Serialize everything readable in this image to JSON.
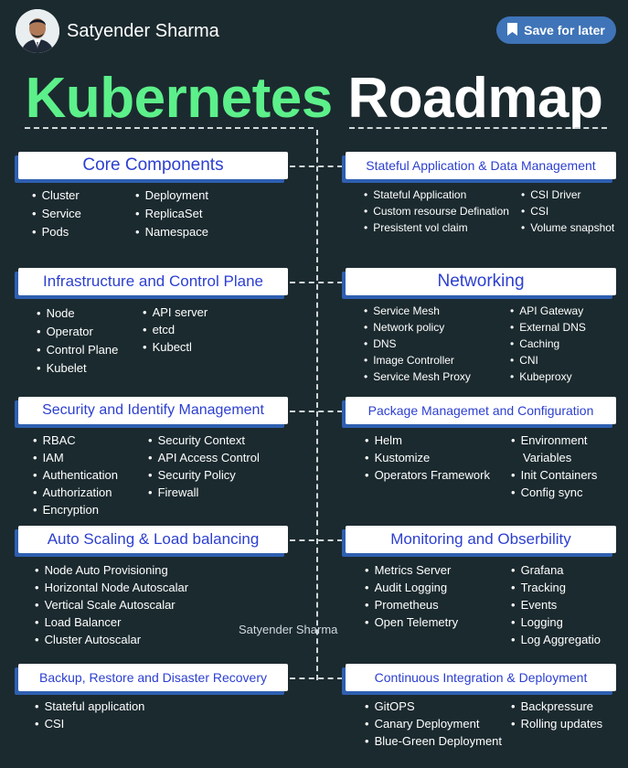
{
  "header": {
    "author": "Satyender Sharma",
    "save_label": "Save for later",
    "save_icon": "bookmark-icon"
  },
  "title": {
    "part1": "Kubernetes",
    "part2": "Roadmap"
  },
  "watermark": "Satyender Sharma",
  "colors": {
    "background": "#1b2a2f",
    "title_green": "#5cf08a",
    "header_text": "#2c3fd0",
    "button": "#3f74b8",
    "header_shadow": "#2e5fb0"
  },
  "sections": {
    "core": {
      "title": "Core Components",
      "col1": [
        "Cluster",
        "Service",
        "Pods"
      ],
      "col2": [
        "Deployment",
        "ReplicaSet",
        "Namespace"
      ]
    },
    "stateful": {
      "title": "Stateful Application & Data Management",
      "col1": [
        "Stateful Application",
        "Custom resourse Defination",
        "Presistent vol claim"
      ],
      "col2": [
        "CSI Driver",
        "CSI",
        "Volume snapshot"
      ]
    },
    "infra": {
      "title": "Infrastructure and Control Plane",
      "col1": [
        "Node",
        "Operator",
        "Control Plane",
        "Kubelet"
      ],
      "col2": [
        "API server",
        "etcd",
        "Kubectl"
      ]
    },
    "networking": {
      "title": "Networking",
      "col1": [
        "Service Mesh",
        "Network policy",
        "DNS",
        "Image Controller",
        "Service Mesh Proxy"
      ],
      "col2": [
        "API Gateway",
        "External DNS",
        "Caching",
        "CNI",
        "Kubeproxy"
      ]
    },
    "security": {
      "title": "Security and Identify Management",
      "col1": [
        "RBAC",
        "IAM",
        "Authentication",
        "Authorization",
        "Encryption"
      ],
      "col2": [
        "Security Context",
        "API Access Control",
        "Security Policy",
        "Firewall"
      ]
    },
    "package": {
      "title": "Package Managemet and Configuration",
      "col1": [
        "Helm",
        "Kustomize",
        "Operators Framework"
      ],
      "col2": [
        "Environment",
        "Variables",
        "Init Containers",
        "Config sync"
      ]
    },
    "autoscaling": {
      "title": "Auto Scaling & Load balancing",
      "col1": [
        "Node Auto Provisioning",
        "Horizontal Node Autoscalar",
        "Vertical Scale Autoscalar",
        "Load Balancer",
        "Cluster Autoscalar"
      ]
    },
    "monitoring": {
      "title": "Monitoring and Obserbility",
      "col1": [
        "Metrics Server",
        "Audit Logging",
        "Prometheus",
        "Open Telemetry"
      ],
      "col2": [
        "Grafana",
        "Tracking",
        "Events",
        "Logging",
        "Log Aggregatio"
      ]
    },
    "backup": {
      "title": "Backup, Restore and Disaster Recovery",
      "col1": [
        "Stateful application",
        "CSI"
      ]
    },
    "cicd": {
      "title": "Continuous Integration & Deployment",
      "col1": [
        "GitOPS",
        "Canary Deployment",
        "Blue-Green Deployment"
      ],
      "col2": [
        "Backpressure",
        "Rolling updates"
      ]
    }
  }
}
